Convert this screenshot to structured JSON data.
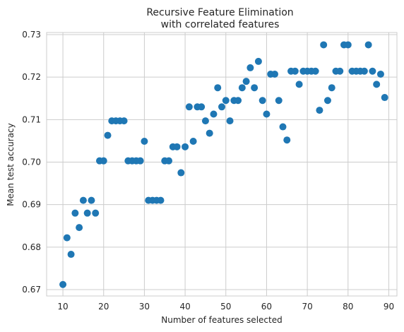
{
  "chart_data": {
    "type": "scatter",
    "title": [
      "Recursive Feature Elimination",
      "with correlated features"
    ],
    "xlabel": "Number of features selected",
    "ylabel": "Mean test accuracy",
    "xlim": [
      6,
      92
    ],
    "ylim": [
      0.6685,
      0.7305
    ],
    "xticks": [
      10,
      20,
      30,
      40,
      50,
      60,
      70,
      80,
      90
    ],
    "xtick_labels": [
      "10",
      "20",
      "30",
      "40",
      "50",
      "60",
      "70",
      "80",
      "90"
    ],
    "yticks": [
      0.67,
      0.68,
      0.69,
      0.7,
      0.71,
      0.72,
      0.73
    ],
    "ytick_labels": [
      "0.67",
      "0.68",
      "0.69",
      "0.70",
      "0.71",
      "0.72",
      "0.73"
    ],
    "grid": true,
    "color": "#1f77b4",
    "x": [
      10,
      11,
      12,
      13,
      14,
      15,
      16,
      17,
      18,
      19,
      20,
      21,
      22,
      23,
      24,
      25,
      26,
      27,
      28,
      29,
      30,
      31,
      32,
      33,
      34,
      35,
      36,
      37,
      38,
      39,
      40,
      41,
      42,
      43,
      44,
      45,
      46,
      47,
      48,
      49,
      50,
      51,
      52,
      53,
      54,
      55,
      56,
      57,
      58,
      59,
      60,
      61,
      62,
      63,
      64,
      65,
      66,
      67,
      68,
      69,
      70,
      71,
      72,
      73,
      74,
      75,
      76,
      77,
      78,
      79,
      80,
      81,
      82,
      83,
      84,
      85,
      86,
      87,
      88,
      89
    ],
    "y": [
      0.6712,
      0.6822,
      0.6783,
      0.688,
      0.6846,
      0.691,
      0.688,
      0.691,
      0.688,
      0.7003,
      0.7003,
      0.7063,
      0.7097,
      0.7097,
      0.7097,
      0.7097,
      0.7003,
      0.7003,
      0.7003,
      0.7003,
      0.7049,
      0.691,
      0.691,
      0.691,
      0.691,
      0.7003,
      0.7003,
      0.7036,
      0.7036,
      0.6975,
      0.7036,
      0.713,
      0.7049,
      0.713,
      0.713,
      0.7097,
      0.7068,
      0.7113,
      0.7175,
      0.713,
      0.7145,
      0.7097,
      0.7145,
      0.7145,
      0.7175,
      0.719,
      0.7222,
      0.7175,
      0.7237,
      0.7145,
      0.7113,
      0.7207,
      0.7207,
      0.7145,
      0.7083,
      0.7052,
      0.7214,
      0.7214,
      0.7183,
      0.7214,
      0.7214,
      0.7214,
      0.7214,
      0.7122,
      0.7276,
      0.7145,
      0.7175,
      0.7214,
      0.7214,
      0.7276,
      0.7276,
      0.7214,
      0.7214,
      0.7214,
      0.7214,
      0.7276,
      0.7214,
      0.7183,
      0.7207,
      0.7152
    ]
  }
}
